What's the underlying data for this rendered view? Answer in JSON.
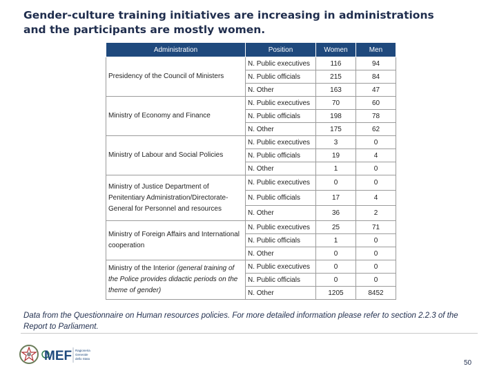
{
  "title": {
    "line1": "Gender-culture training initiatives are increasing in administrations",
    "line2": "and the participants are mostly women."
  },
  "table": {
    "headers": [
      "Administration",
      "Position",
      "Women",
      "Men"
    ],
    "groups": [
      {
        "administration": "Presidency of the Council of Ministers",
        "administration_note": "",
        "rows": [
          {
            "position": "N. Public executives",
            "women": "116",
            "men": "94"
          },
          {
            "position": "N. Public officials",
            "women": "215",
            "men": "84"
          },
          {
            "position": "N. Other",
            "women": "163",
            "men": "47"
          }
        ]
      },
      {
        "administration": "Ministry of Economy and Finance",
        "administration_note": "",
        "rows": [
          {
            "position": "N. Public executives",
            "women": "70",
            "men": "60"
          },
          {
            "position": "N. Public officials",
            "women": "198",
            "men": "78"
          },
          {
            "position": "N. Other",
            "women": "175",
            "men": "62"
          }
        ]
      },
      {
        "administration": "Ministry of Labour and Social Policies",
        "administration_note": "",
        "rows": [
          {
            "position": "N. Public executives",
            "women": "3",
            "men": "0"
          },
          {
            "position": "N. Public officials",
            "women": "19",
            "men": "4"
          },
          {
            "position": "N. Other",
            "women": "1",
            "men": "0"
          }
        ]
      },
      {
        "administration": "Ministry of Justice Department of Penitentiary Administration/Directorate-General for Personnel and resources",
        "administration_note": "",
        "rows": [
          {
            "position": "N. Public executives",
            "women": "0",
            "men": "0"
          },
          {
            "position": "N. Public officials",
            "women": "17",
            "men": "4"
          },
          {
            "position": "N. Other",
            "women": "36",
            "men": "2"
          }
        ]
      },
      {
        "administration": "Ministry of Foreign Affairs and International cooperation",
        "administration_note": "",
        "rows": [
          {
            "position": "N. Public executives",
            "women": "25",
            "men": "71"
          },
          {
            "position": "N. Public officials",
            "women": "1",
            "men": "0"
          },
          {
            "position": "N. Other",
            "women": "0",
            "men": "0"
          }
        ]
      },
      {
        "administration": "Ministry of the Interior",
        "administration_note": "(general training of the Police provides didactic periods on the theme of gender)",
        "rows": [
          {
            "position": "N. Public executives",
            "women": "0",
            "men": "0"
          },
          {
            "position": "N. Public officials",
            "women": "0",
            "men": "0"
          },
          {
            "position": "N. Other",
            "women": "1205",
            "men": "8452"
          }
        ]
      }
    ]
  },
  "note": "Data from the Questionnaire on Human resources policies. For more detailed information please refer to section 2.2.3 of the Report to Parliament.",
  "footer": {
    "logo_text": "MEF",
    "logo_subtext": [
      "Ragioneria",
      "Generale",
      "dello Stato"
    ],
    "page_number": "50"
  }
}
